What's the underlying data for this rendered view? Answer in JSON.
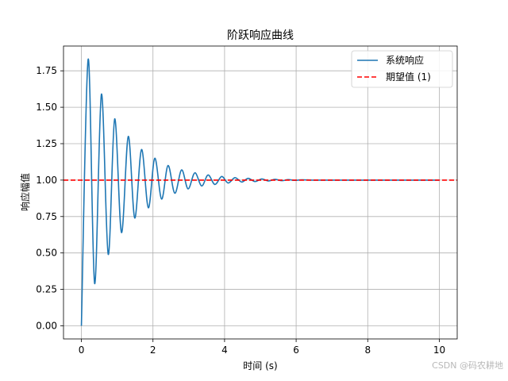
{
  "chart_data": {
    "type": "line",
    "title": "阶跃响应曲线",
    "xlabel": "时间 (s)",
    "ylabel": "响应幅值",
    "xlim": [
      -0.5,
      10.5
    ],
    "ylim": [
      -0.09,
      1.92
    ],
    "xticks": [
      0,
      2,
      4,
      6,
      8,
      10
    ],
    "yticks": [
      0.0,
      0.25,
      0.5,
      0.75,
      1.0,
      1.25,
      1.5,
      1.75
    ],
    "xtick_labels": [
      "0",
      "2",
      "4",
      "6",
      "8",
      "10"
    ],
    "ytick_labels": [
      "0.00",
      "0.25",
      "0.50",
      "0.75",
      "1.00",
      "1.25",
      "1.50",
      "1.75"
    ],
    "grid": true,
    "legend_position": "top-right",
    "series": [
      {
        "name": "系统响应",
        "color": "#1f77b4",
        "style": "solid",
        "x": [
          0.0,
          0.19,
          0.37,
          0.56,
          0.75,
          0.93,
          1.12,
          1.31,
          1.49,
          1.68,
          1.87,
          2.05,
          2.24,
          2.42,
          2.61,
          2.8,
          2.98,
          3.17,
          3.36,
          3.54,
          3.73,
          3.92,
          4.1,
          4.29,
          4.48,
          4.66,
          4.85,
          5.04,
          5.22,
          5.41,
          5.6,
          5.78,
          5.97,
          6.16,
          6.5,
          7.0,
          8.0,
          9.0,
          10.0
        ],
        "y": [
          0.0,
          1.83,
          0.29,
          1.59,
          0.49,
          1.42,
          0.64,
          1.3,
          0.74,
          1.21,
          0.81,
          1.15,
          0.87,
          1.1,
          0.91,
          1.07,
          0.94,
          1.05,
          0.96,
          1.035,
          0.97,
          1.025,
          0.98,
          1.017,
          0.987,
          1.012,
          0.99,
          1.008,
          0.994,
          1.005,
          0.996,
          1.003,
          0.998,
          1.002,
          1.0,
          1.0,
          1.0,
          1.0,
          1.0
        ]
      },
      {
        "name": "期望值 (1)",
        "color": "#ff0000",
        "style": "dashed",
        "y_constant": 1.0
      }
    ]
  },
  "watermark": "CSDN @码农耕地"
}
